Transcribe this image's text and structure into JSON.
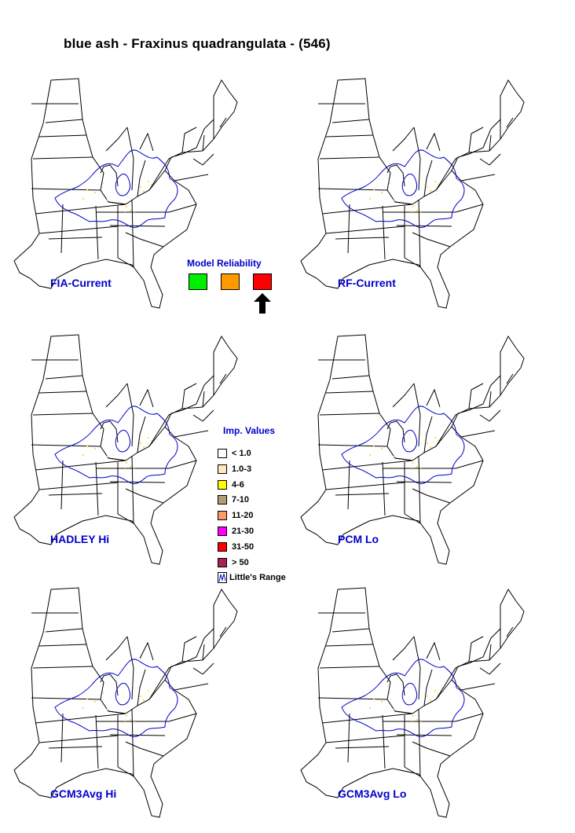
{
  "title": "blue ash - Fraxinus quadrangulata - (546)",
  "colors": {
    "state_outline": "#000000",
    "range_line": "#0000cc",
    "label_blue": "#0000cc",
    "importance_dot": "#ffd966"
  },
  "maps": [
    {
      "label": "FIA-Current"
    },
    {
      "label": "RF-Current"
    },
    {
      "label": "HADLEY Hi"
    },
    {
      "label": "PCM Lo"
    },
    {
      "label": "GCM3Avg Hi"
    },
    {
      "label": "GCM3Avg Lo"
    }
  ],
  "model_reliability": {
    "title": "Model Reliability",
    "levels": [
      {
        "color": "#00ee00"
      },
      {
        "color": "#ff9900"
      },
      {
        "color": "#ff0000",
        "selected": true
      }
    ],
    "indicator_icon": "up-arrow-icon"
  },
  "legend": {
    "title": "Imp. Values",
    "items": [
      {
        "label": "< 1.0",
        "color": "#ffffff"
      },
      {
        "label": "1.0-3",
        "color": "#ffe8c0"
      },
      {
        "label": "4-6",
        "color": "#ffff00"
      },
      {
        "label": "7-10",
        "color": "#b0a070"
      },
      {
        "label": "11-20",
        "color": "#ff9966"
      },
      {
        "label": "21-30",
        "color": "#ff00ff"
      },
      {
        "label": "31-50",
        "color": "#ff0000"
      },
      {
        "label": "> 50",
        "color": "#aa2255"
      },
      {
        "label": "Little's Range",
        "icon": "range-line-icon"
      }
    ]
  }
}
